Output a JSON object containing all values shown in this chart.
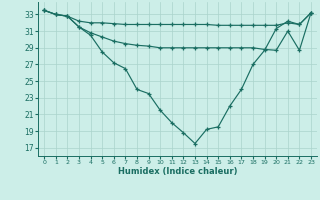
{
  "xlabel": "Humidex (Indice chaleur)",
  "bg_color": "#cceee8",
  "grid_color": "#aad4cc",
  "line_color": "#1a6e62",
  "x_ticks": [
    0,
    1,
    2,
    3,
    4,
    5,
    6,
    7,
    8,
    9,
    10,
    11,
    12,
    13,
    14,
    15,
    16,
    17,
    18,
    19,
    20,
    21,
    22,
    23
  ],
  "y_ticks": [
    17,
    19,
    21,
    23,
    25,
    27,
    29,
    31,
    33
  ],
  "ylim": [
    16.0,
    34.5
  ],
  "xlim": [
    -0.5,
    23.5
  ],
  "line1_x": [
    0,
    1,
    2,
    3,
    4,
    5,
    6,
    7,
    8,
    9,
    10,
    11,
    12,
    13,
    14,
    15,
    16,
    17,
    18,
    19,
    20,
    21,
    22,
    23
  ],
  "line1_y": [
    33.5,
    33.0,
    32.8,
    32.2,
    32.0,
    32.0,
    31.9,
    31.8,
    31.8,
    31.8,
    31.8,
    31.8,
    31.8,
    31.8,
    31.8,
    31.7,
    31.7,
    31.7,
    31.7,
    31.7,
    31.7,
    32.0,
    31.8,
    33.2
  ],
  "line2_x": [
    0,
    1,
    2,
    3,
    4,
    5,
    6,
    7,
    8,
    9,
    10,
    11,
    12,
    13,
    14,
    15,
    16,
    17,
    18,
    19,
    20,
    21,
    22,
    23
  ],
  "line2_y": [
    33.5,
    33.0,
    32.8,
    31.5,
    30.8,
    30.3,
    29.8,
    29.5,
    29.3,
    29.2,
    29.0,
    29.0,
    29.0,
    29.0,
    29.0,
    29.0,
    29.0,
    29.0,
    29.0,
    28.8,
    28.7,
    31.0,
    28.7,
    33.2
  ],
  "line3_x": [
    0,
    1,
    2,
    3,
    4,
    5,
    6,
    7,
    8,
    9,
    10,
    11,
    12,
    13,
    14,
    15,
    16,
    17,
    18,
    19,
    20,
    21,
    22,
    23
  ],
  "line3_y": [
    33.5,
    33.0,
    32.8,
    31.5,
    30.5,
    28.5,
    27.2,
    26.5,
    24.0,
    23.5,
    21.5,
    20.0,
    18.8,
    17.5,
    19.2,
    19.5,
    22.0,
    24.0,
    27.0,
    28.7,
    31.3,
    32.2,
    31.8,
    33.2
  ]
}
